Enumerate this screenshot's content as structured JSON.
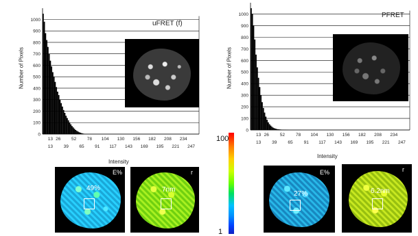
{
  "chart_data": [
    {
      "type": "bar",
      "title": "uFRET (f)",
      "xlabel": "Intensity",
      "ylabel": "Number of Pixels",
      "ylim": [
        0,
        1050
      ],
      "xlim": [
        0,
        260
      ],
      "yticks": [
        0,
        100,
        200,
        300,
        400,
        500,
        600,
        700,
        800,
        900,
        1000
      ],
      "xticks_top": [
        "13",
        "26",
        "52",
        "78",
        "104",
        "130",
        "156",
        "182",
        "208",
        "234"
      ],
      "xticks_bottom": [
        "13",
        "39",
        "65",
        "91",
        "117",
        "143",
        "169",
        "195",
        "221",
        "247"
      ],
      "xtick_values_top": [
        13,
        26,
        52,
        78,
        104,
        130,
        156,
        182,
        208,
        234
      ],
      "xtick_values_bottom": [
        13,
        39,
        65,
        91,
        117,
        143,
        169,
        195,
        221,
        247
      ],
      "x": [
        1,
        3,
        5,
        7,
        9,
        11,
        13,
        15,
        17,
        19,
        21,
        23,
        25,
        27,
        29,
        31,
        33,
        35,
        37,
        39,
        41,
        43,
        45,
        47,
        49,
        51,
        53,
        55,
        57,
        59,
        61,
        63,
        65,
        67,
        69
      ],
      "values": [
        1050,
        980,
        880,
        820,
        760,
        700,
        640,
        590,
        540,
        500,
        455,
        410,
        370,
        340,
        300,
        270,
        240,
        210,
        185,
        160,
        140,
        120,
        100,
        85,
        70,
        58,
        46,
        36,
        28,
        22,
        16,
        12,
        8,
        5,
        3
      ],
      "grid": true
    },
    {
      "type": "bar",
      "title": "PFRET",
      "xlabel": "Intensity",
      "ylabel": "Number of Pixels",
      "ylim": [
        0,
        1050
      ],
      "xlim": [
        0,
        260
      ],
      "yticks": [
        0,
        100,
        200,
        300,
        400,
        500,
        600,
        700,
        800,
        900,
        1000
      ],
      "xticks_top": [
        "13",
        "26",
        "52",
        "78",
        "104",
        "130",
        "156",
        "182",
        "208",
        "234"
      ],
      "xticks_bottom": [
        "13",
        "39",
        "65",
        "91",
        "117",
        "143",
        "169",
        "195",
        "221",
        "247"
      ],
      "xtick_values_top": [
        13,
        26,
        52,
        78,
        104,
        130,
        156,
        182,
        208,
        234
      ],
      "xtick_values_bottom": [
        13,
        39,
        65,
        91,
        117,
        143,
        169,
        195,
        221,
        247
      ],
      "x": [
        1,
        3,
        5,
        7,
        9,
        11,
        13,
        15,
        17,
        19,
        21,
        23,
        25,
        27,
        29,
        31,
        33,
        35,
        37,
        39,
        41,
        43,
        45,
        47,
        49,
        51,
        53,
        55,
        57,
        59,
        61
      ],
      "values": [
        1050,
        1000,
        900,
        780,
        650,
        540,
        450,
        370,
        300,
        240,
        190,
        150,
        115,
        88,
        66,
        50,
        38,
        28,
        20,
        15,
        11,
        8,
        6,
        5,
        4,
        3,
        3,
        2,
        2,
        1,
        1
      ],
      "grid": true
    }
  ],
  "images": {
    "left": {
      "e_label": "E%",
      "e_value": "49%",
      "r_label": "r",
      "r_value": "7nm"
    },
    "right": {
      "e_label": "E%",
      "e_value": "27%",
      "r_label": "r",
      "r_value": "6.2nm"
    }
  },
  "colorbar": {
    "max": "100",
    "min": "1"
  },
  "colors": {
    "bar": "#000000",
    "grid": "#000000",
    "e_tint": "#28d0ff",
    "r_tint": "#b8ff1a"
  }
}
